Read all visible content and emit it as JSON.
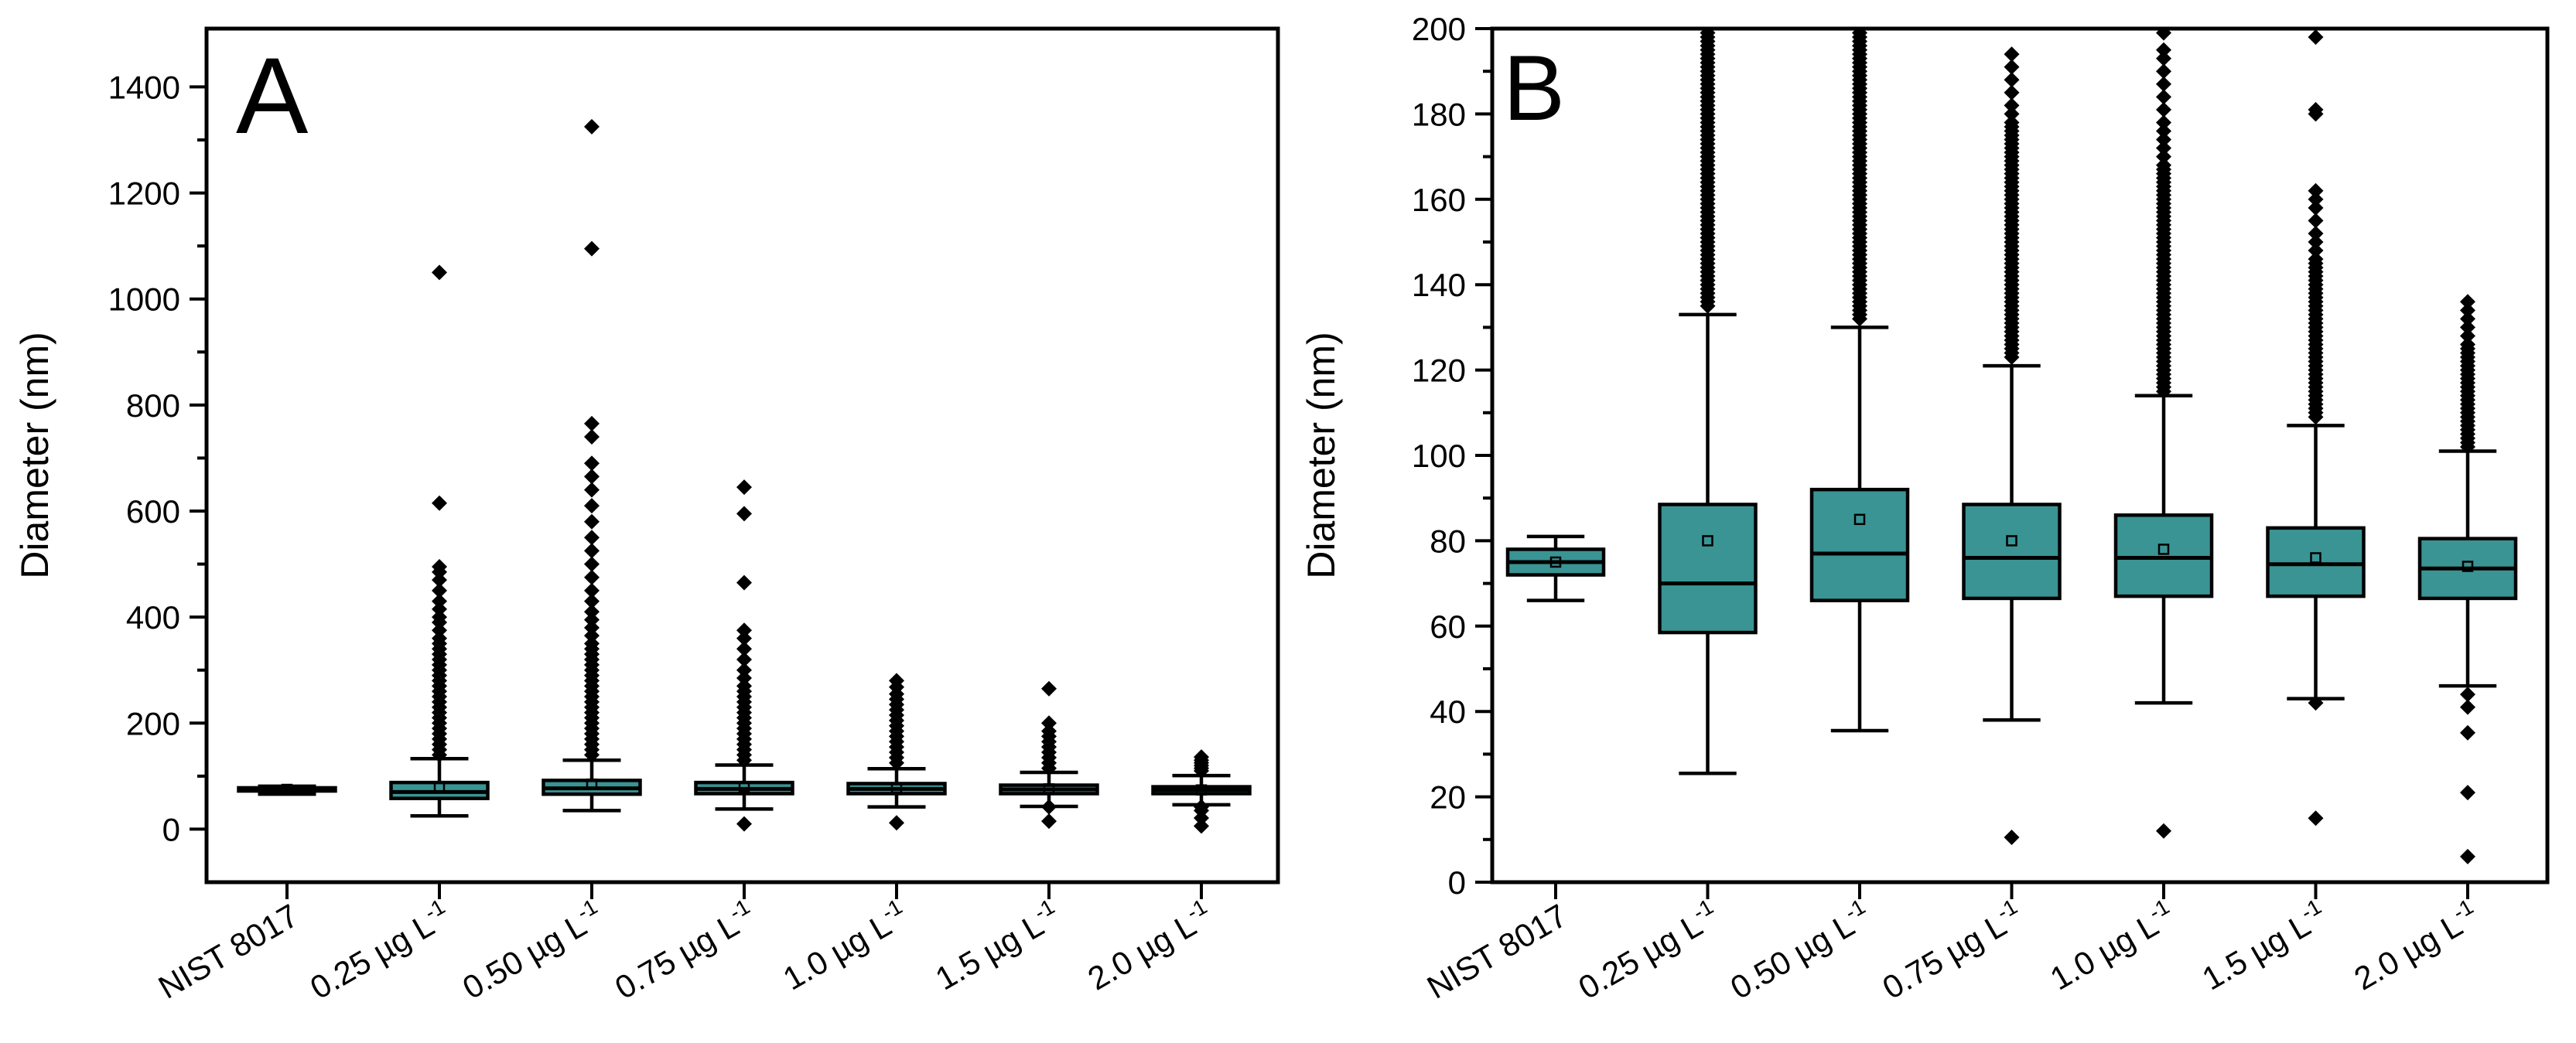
{
  "chart_data": [
    {
      "type": "box",
      "panel_label": "A",
      "ylabel": "Diameter (nm)",
      "xlabel": "",
      "ylim": [
        -100,
        1510
      ],
      "yticks": [
        0,
        200,
        400,
        600,
        800,
        1000,
        1200,
        1400
      ],
      "ytick_labels": [
        "0",
        "200",
        "400",
        "600",
        "800",
        "1000",
        "1200",
        "1400"
      ],
      "box_color": "#3a9494",
      "categories": [
        {
          "name": "NIST 8017",
          "label": "NIST 8017",
          "sup": "",
          "q1": 72,
          "median": 75,
          "q3": 78,
          "whisker_low": 66,
          "whisker_high": 81,
          "mean": 75,
          "outliers": []
        },
        {
          "name": "0.25 µg L-1",
          "label": "0.25 µg L",
          "sup": "-1",
          "q1": 58,
          "median": 70,
          "q3": 88,
          "whisker_low": 25,
          "whisker_high": 133,
          "mean": 80,
          "outliers": [
            140,
            150,
            160,
            170,
            180,
            190,
            200,
            210,
            220,
            230,
            240,
            250,
            260,
            270,
            280,
            290,
            300,
            310,
            320,
            330,
            340,
            350,
            360,
            375,
            390,
            400,
            415,
            430,
            450,
            470,
            485,
            495,
            615,
            1050
          ]
        },
        {
          "name": "0.50 µg L-1",
          "label": "0.50 µg L",
          "sup": "-1",
          "q1": 66,
          "median": 77,
          "q3": 92,
          "whisker_low": 35,
          "whisker_high": 130,
          "mean": 85,
          "outliers": [
            140,
            150,
            160,
            170,
            180,
            190,
            200,
            210,
            220,
            230,
            240,
            250,
            260,
            270,
            280,
            290,
            300,
            310,
            320,
            330,
            340,
            350,
            365,
            380,
            395,
            410,
            430,
            450,
            475,
            500,
            525,
            550,
            580,
            610,
            640,
            665,
            690,
            740,
            765,
            1095,
            1325
          ]
        },
        {
          "name": "0.75 µg L-1",
          "label": "0.75 µg L",
          "sup": "-1",
          "q1": 67,
          "median": 76,
          "q3": 88,
          "whisker_low": 38,
          "whisker_high": 121,
          "mean": 80,
          "outliers": [
            10,
            130,
            140,
            150,
            160,
            170,
            180,
            190,
            200,
            210,
            220,
            230,
            240,
            250,
            260,
            270,
            285,
            300,
            320,
            340,
            360,
            375,
            465,
            595,
            645
          ]
        },
        {
          "name": "1.0 µg L-1",
          "label": "1.0 µg L",
          "sup": "-1",
          "q1": 67,
          "median": 76,
          "q3": 86,
          "whisker_low": 42,
          "whisker_high": 114,
          "mean": 78,
          "outliers": [
            12,
            125,
            135,
            145,
            155,
            165,
            175,
            185,
            195,
            205,
            215,
            225,
            235,
            245,
            255,
            268,
            280
          ]
        },
        {
          "name": "1.5 µg L-1",
          "label": "1.5 µg L",
          "sup": "-1",
          "q1": 67,
          "median": 75,
          "q3": 83,
          "whisker_low": 43,
          "whisker_high": 107,
          "mean": 76,
          "outliers": [
            15,
            42,
            115,
            125,
            135,
            145,
            155,
            165,
            175,
            185,
            200,
            265
          ]
        },
        {
          "name": "2.0 µg L-1",
          "label": "2.0 µg L",
          "sup": "-1",
          "q1": 67,
          "median": 74,
          "q3": 80,
          "whisker_low": 46,
          "whisker_high": 101,
          "mean": 74,
          "outliers": [
            6,
            21,
            35,
            42,
            110,
            115,
            120,
            125,
            130,
            136
          ]
        }
      ]
    },
    {
      "type": "box",
      "panel_label": "B",
      "ylabel": "Diameter (nm)",
      "xlabel": "",
      "ylim": [
        0,
        200
      ],
      "yticks": [
        0,
        20,
        40,
        60,
        80,
        100,
        120,
        140,
        160,
        180,
        200
      ],
      "ytick_labels": [
        "0",
        "20",
        "40",
        "60",
        "80",
        "100",
        "120",
        "140",
        "160",
        "180",
        "200"
      ],
      "box_color": "#3a9494",
      "categories": [
        {
          "name": "NIST 8017",
          "label": "NIST 8017",
          "sup": "",
          "q1": 72,
          "median": 75,
          "q3": 78,
          "whisker_low": 66,
          "whisker_high": 81,
          "mean": 75,
          "outliers": []
        },
        {
          "name": "0.25 µg L-1",
          "label": "0.25 µg L",
          "sup": "-1",
          "q1": 58.5,
          "median": 70,
          "q3": 88.5,
          "whisker_low": 25.5,
          "whisker_high": 133,
          "mean": 80,
          "outliers": [
            135,
            136,
            137,
            138,
            139,
            140,
            141,
            142,
            143,
            144,
            145,
            146,
            147,
            148,
            149,
            150,
            151,
            152,
            153,
            154,
            155,
            156,
            157,
            158,
            159,
            160,
            161,
            162,
            163,
            164,
            165,
            166,
            167,
            168,
            169,
            170,
            171,
            172,
            173,
            174,
            175,
            176,
            177,
            178,
            179,
            180,
            181,
            182,
            183,
            184,
            185,
            186,
            187,
            188,
            189,
            190,
            191,
            192,
            193,
            194,
            195,
            196,
            197,
            198,
            199
          ]
        },
        {
          "name": "0.50 µg L-1",
          "label": "0.50 µg L",
          "sup": "-1",
          "q1": 66,
          "median": 77,
          "q3": 92,
          "whisker_low": 35.5,
          "whisker_high": 130,
          "mean": 85,
          "outliers": [
            132,
            133,
            134,
            135,
            136,
            137,
            138,
            139,
            140,
            141,
            142,
            143,
            144,
            145,
            146,
            147,
            148,
            149,
            150,
            151,
            152,
            153,
            154,
            155,
            156,
            157,
            158,
            159,
            160,
            161,
            162,
            163,
            164,
            165,
            166,
            167,
            168,
            169,
            170,
            171,
            172,
            173,
            174,
            175,
            176,
            177,
            178,
            179,
            180,
            181,
            182,
            183,
            184,
            185,
            186,
            187,
            188,
            189,
            190,
            191,
            192,
            193,
            194,
            195,
            196,
            197,
            198,
            199
          ]
        },
        {
          "name": "0.75 µg L-1",
          "label": "0.75 µg L",
          "sup": "-1",
          "q1": 66.5,
          "median": 76,
          "q3": 88.5,
          "whisker_low": 38,
          "whisker_high": 121,
          "mean": 80,
          "outliers": [
            10.5,
            123,
            124,
            125,
            126,
            127,
            128,
            129,
            130,
            131,
            132,
            133,
            134,
            135,
            136,
            137,
            138,
            139,
            140,
            141,
            142,
            143,
            144,
            145,
            146,
            147,
            148,
            149,
            150,
            151,
            152,
            153,
            154,
            155,
            156,
            157,
            158,
            159,
            160,
            161,
            162,
            163,
            164,
            165,
            166,
            167,
            168,
            169,
            170,
            171,
            172,
            173,
            174,
            175,
            176,
            177,
            178,
            180,
            182,
            185,
            188,
            191,
            194
          ]
        },
        {
          "name": "1.0 µg L-1",
          "label": "1.0 µg L",
          "sup": "-1",
          "q1": 67,
          "median": 76,
          "q3": 86,
          "whisker_low": 42,
          "whisker_high": 114,
          "mean": 78,
          "outliers": [
            12,
            115,
            116,
            117,
            118,
            119,
            120,
            121,
            122,
            123,
            124,
            125,
            126,
            127,
            128,
            129,
            130,
            131,
            132,
            133,
            134,
            135,
            136,
            137,
            138,
            139,
            140,
            141,
            142,
            143,
            144,
            145,
            146,
            147,
            148,
            149,
            150,
            151,
            152,
            153,
            154,
            155,
            156,
            157,
            158,
            159,
            160,
            161,
            162,
            163,
            164,
            165,
            166,
            167,
            168,
            170,
            172,
            174,
            176,
            178,
            181,
            184,
            187,
            190,
            193,
            195,
            199
          ]
        },
        {
          "name": "1.5 µg L-1",
          "label": "1.5 µg L",
          "sup": "-1",
          "q1": 67,
          "median": 74.5,
          "q3": 83,
          "whisker_low": 43,
          "whisker_high": 107,
          "mean": 76,
          "outliers": [
            15,
            42,
            109,
            110,
            111,
            112,
            113,
            114,
            115,
            116,
            117,
            118,
            119,
            120,
            121,
            122,
            123,
            124,
            125,
            126,
            127,
            128,
            129,
            130,
            131,
            132,
            133,
            134,
            135,
            136,
            137,
            138,
            139,
            140,
            141,
            142,
            143,
            144,
            145,
            146,
            148,
            150,
            152,
            155,
            158,
            160,
            162,
            180,
            181,
            198
          ]
        },
        {
          "name": "2.0 µg L-1",
          "label": "2.0 µg L",
          "sup": "-1",
          "q1": 66.5,
          "median": 73.5,
          "q3": 80.5,
          "whisker_low": 46,
          "whisker_high": 101,
          "mean": 74,
          "outliers": [
            6,
            21,
            35,
            41,
            44,
            102,
            103,
            104,
            105,
            106,
            107,
            108,
            109,
            110,
            111,
            112,
            113,
            114,
            115,
            116,
            117,
            118,
            119,
            120,
            121,
            122,
            123,
            124,
            125,
            126,
            128,
            130,
            132,
            134,
            136
          ]
        }
      ]
    }
  ]
}
